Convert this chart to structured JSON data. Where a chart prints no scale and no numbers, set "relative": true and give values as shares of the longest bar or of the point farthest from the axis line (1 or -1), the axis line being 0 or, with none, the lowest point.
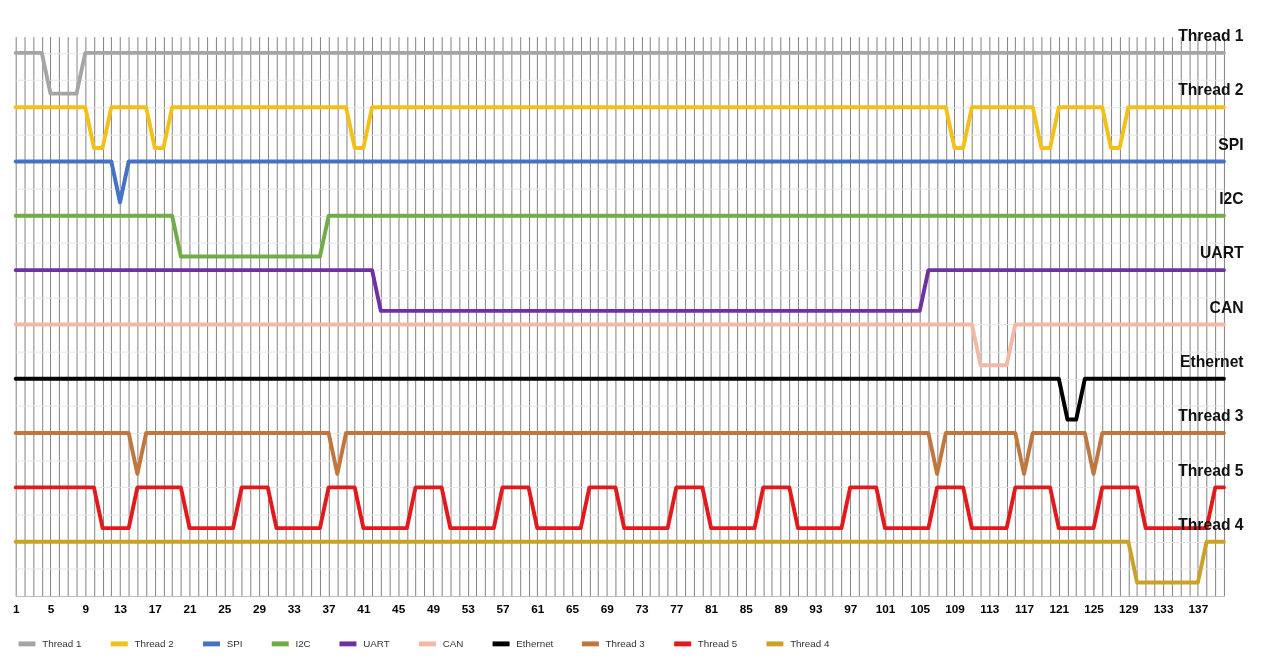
{
  "chart_data": {
    "type": "line",
    "relative": true,
    "grid": true,
    "legend": "bottom",
    "marker": "none",
    "line_style": "solid",
    "categories": [
      "1",
      null,
      null,
      null,
      "5",
      null,
      null,
      null,
      "9",
      null,
      null,
      null,
      "13",
      null,
      null,
      null,
      "17",
      null,
      null,
      null,
      "21",
      null,
      null,
      null,
      "25",
      null,
      null,
      null,
      "29",
      null,
      null,
      null,
      "33",
      null,
      null,
      null,
      "37",
      null,
      null,
      null,
      "41",
      null,
      null,
      null,
      "45",
      null,
      null,
      null,
      "49",
      null,
      null,
      null,
      "53",
      null,
      null,
      null,
      "57",
      null,
      null,
      null,
      "61",
      null,
      null,
      null,
      "65",
      null,
      null,
      null,
      "69",
      null,
      null,
      null,
      "73",
      null,
      null,
      null,
      "77",
      null,
      null,
      null,
      "81",
      null,
      null,
      null,
      "85",
      null,
      null,
      null,
      "89",
      null,
      null,
      null,
      "93",
      null,
      null,
      null,
      "97",
      null,
      null,
      null,
      "101",
      null,
      null,
      null,
      "105",
      null,
      null,
      null,
      "109",
      null,
      null,
      null,
      "113",
      null,
      null,
      null,
      "117",
      null,
      null,
      null,
      "121",
      null,
      null,
      null,
      "125",
      null,
      null,
      null,
      "129",
      null,
      null,
      null,
      "133",
      null,
      null,
      null,
      "137",
      null,
      null,
      null
    ],
    "series": [
      {
        "name": "Thread 1",
        "color": "#a5a5a5",
        "values": [
          1,
          1,
          1,
          1,
          0.925,
          0.925,
          0.925,
          0.925,
          1,
          1,
          1,
          1,
          1,
          1,
          1,
          1,
          1,
          1,
          1,
          1,
          1,
          1,
          1,
          1,
          1,
          1,
          1,
          1,
          1,
          1,
          1,
          1,
          1,
          1,
          1,
          1,
          1,
          1,
          1,
          1,
          1,
          1,
          1,
          1,
          1,
          1,
          1,
          1,
          1,
          1,
          1,
          1,
          1,
          1,
          1,
          1,
          1,
          1,
          1,
          1,
          1,
          1,
          1,
          1,
          1,
          1,
          1,
          1,
          1,
          1,
          1,
          1,
          1,
          1,
          1,
          1,
          1,
          1,
          1,
          1,
          1,
          1,
          1,
          1,
          1,
          1,
          1,
          1,
          1,
          1,
          1,
          1,
          1,
          1,
          1,
          1,
          1,
          1,
          1,
          1,
          1,
          1,
          1,
          1,
          1,
          1,
          1,
          1,
          1,
          1,
          1,
          1,
          1,
          1,
          1,
          1,
          1,
          1,
          1,
          1,
          1,
          1,
          1,
          1,
          1,
          1,
          1,
          1,
          1,
          1,
          1,
          1,
          1,
          1,
          1,
          1,
          1,
          1,
          1,
          1
        ]
      },
      {
        "name": "Thread 2",
        "color": "#f2c018",
        "values": [
          0.9,
          0.9,
          0.9,
          0.9,
          0.9,
          0.9,
          0.9,
          0.9,
          0.9,
          0.825,
          0.825,
          0.9,
          0.9,
          0.9,
          0.9,
          0.9,
          0.825,
          0.825,
          0.9,
          0.9,
          0.9,
          0.9,
          0.9,
          0.9,
          0.9,
          0.9,
          0.9,
          0.9,
          0.9,
          0.9,
          0.9,
          0.9,
          0.9,
          0.9,
          0.9,
          0.9,
          0.9,
          0.9,
          0.9,
          0.825,
          0.825,
          0.9,
          0.9,
          0.9,
          0.9,
          0.9,
          0.9,
          0.9,
          0.9,
          0.9,
          0.9,
          0.9,
          0.9,
          0.9,
          0.9,
          0.9,
          0.9,
          0.9,
          0.9,
          0.9,
          0.9,
          0.9,
          0.9,
          0.9,
          0.9,
          0.9,
          0.9,
          0.9,
          0.9,
          0.9,
          0.9,
          0.9,
          0.9,
          0.9,
          0.9,
          0.9,
          0.9,
          0.9,
          0.9,
          0.9,
          0.9,
          0.9,
          0.9,
          0.9,
          0.9,
          0.9,
          0.9,
          0.9,
          0.9,
          0.9,
          0.9,
          0.9,
          0.9,
          0.9,
          0.9,
          0.9,
          0.9,
          0.9,
          0.9,
          0.9,
          0.9,
          0.9,
          0.9,
          0.9,
          0.9,
          0.9,
          0.9,
          0.9,
          0.825,
          0.825,
          0.9,
          0.9,
          0.9,
          0.9,
          0.9,
          0.9,
          0.9,
          0.9,
          0.825,
          0.825,
          0.9,
          0.9,
          0.9,
          0.9,
          0.9,
          0.9,
          0.825,
          0.825,
          0.9,
          0.9,
          0.9,
          0.9,
          0.9,
          0.9,
          0.9,
          0.9,
          0.9,
          0.9,
          0.9,
          0.9
        ]
      },
      {
        "name": "SPI",
        "color": "#4472c4",
        "values": [
          0.8,
          0.8,
          0.8,
          0.8,
          0.8,
          0.8,
          0.8,
          0.8,
          0.8,
          0.8,
          0.8,
          0.8,
          0.725,
          0.8,
          0.8,
          0.8,
          0.8,
          0.8,
          0.8,
          0.8,
          0.8,
          0.8,
          0.8,
          0.8,
          0.8,
          0.8,
          0.8,
          0.8,
          0.8,
          0.8,
          0.8,
          0.8,
          0.8,
          0.8,
          0.8,
          0.8,
          0.8,
          0.8,
          0.8,
          0.8,
          0.8,
          0.8,
          0.8,
          0.8,
          0.8,
          0.8,
          0.8,
          0.8,
          0.8,
          0.8,
          0.8,
          0.8,
          0.8,
          0.8,
          0.8,
          0.8,
          0.8,
          0.8,
          0.8,
          0.8,
          0.8,
          0.8,
          0.8,
          0.8,
          0.8,
          0.8,
          0.8,
          0.8,
          0.8,
          0.8,
          0.8,
          0.8,
          0.8,
          0.8,
          0.8,
          0.8,
          0.8,
          0.8,
          0.8,
          0.8,
          0.8,
          0.8,
          0.8,
          0.8,
          0.8,
          0.8,
          0.8,
          0.8,
          0.8,
          0.8,
          0.8,
          0.8,
          0.8,
          0.8,
          0.8,
          0.8,
          0.8,
          0.8,
          0.8,
          0.8,
          0.8,
          0.8,
          0.8,
          0.8,
          0.8,
          0.8,
          0.8,
          0.8,
          0.8,
          0.8,
          0.8,
          0.8,
          0.8,
          0.8,
          0.8,
          0.8,
          0.8,
          0.8,
          0.8,
          0.8,
          0.8,
          0.8,
          0.8,
          0.8,
          0.8,
          0.8,
          0.8,
          0.8,
          0.8,
          0.8,
          0.8,
          0.8,
          0.8,
          0.8,
          0.8,
          0.8,
          0.8,
          0.8,
          0.8,
          0.8
        ]
      },
      {
        "name": "I2C",
        "color": "#70ad47",
        "values": [
          0.7,
          0.7,
          0.7,
          0.7,
          0.7,
          0.7,
          0.7,
          0.7,
          0.7,
          0.7,
          0.7,
          0.7,
          0.7,
          0.7,
          0.7,
          0.7,
          0.7,
          0.7,
          0.7,
          0.625,
          0.625,
          0.625,
          0.625,
          0.625,
          0.625,
          0.625,
          0.625,
          0.625,
          0.625,
          0.625,
          0.625,
          0.625,
          0.625,
          0.625,
          0.625,
          0.625,
          0.7,
          0.7,
          0.7,
          0.7,
          0.7,
          0.7,
          0.7,
          0.7,
          0.7,
          0.7,
          0.7,
          0.7,
          0.7,
          0.7,
          0.7,
          0.7,
          0.7,
          0.7,
          0.7,
          0.7,
          0.7,
          0.7,
          0.7,
          0.7,
          0.7,
          0.7,
          0.7,
          0.7,
          0.7,
          0.7,
          0.7,
          0.7,
          0.7,
          0.7,
          0.7,
          0.7,
          0.7,
          0.7,
          0.7,
          0.7,
          0.7,
          0.7,
          0.7,
          0.7,
          0.7,
          0.7,
          0.7,
          0.7,
          0.7,
          0.7,
          0.7,
          0.7,
          0.7,
          0.7,
          0.7,
          0.7,
          0.7,
          0.7,
          0.7,
          0.7,
          0.7,
          0.7,
          0.7,
          0.7,
          0.7,
          0.7,
          0.7,
          0.7,
          0.7,
          0.7,
          0.7,
          0.7,
          0.7,
          0.7,
          0.7,
          0.7,
          0.7,
          0.7,
          0.7,
          0.7,
          0.7,
          0.7,
          0.7,
          0.7,
          0.7,
          0.7,
          0.7,
          0.7,
          0.7,
          0.7,
          0.7,
          0.7,
          0.7,
          0.7,
          0.7,
          0.7,
          0.7,
          0.7,
          0.7,
          0.7,
          0.7,
          0.7,
          0.7,
          0.7
        ]
      },
      {
        "name": "UART",
        "color": "#7030a0",
        "values": [
          0.6,
          0.6,
          0.6,
          0.6,
          0.6,
          0.6,
          0.6,
          0.6,
          0.6,
          0.6,
          0.6,
          0.6,
          0.6,
          0.6,
          0.6,
          0.6,
          0.6,
          0.6,
          0.6,
          0.6,
          0.6,
          0.6,
          0.6,
          0.6,
          0.6,
          0.6,
          0.6,
          0.6,
          0.6,
          0.6,
          0.6,
          0.6,
          0.6,
          0.6,
          0.6,
          0.6,
          0.6,
          0.6,
          0.6,
          0.6,
          0.6,
          0.6,
          0.525,
          0.525,
          0.525,
          0.525,
          0.525,
          0.525,
          0.525,
          0.525,
          0.525,
          0.525,
          0.525,
          0.525,
          0.525,
          0.525,
          0.525,
          0.525,
          0.525,
          0.525,
          0.525,
          0.525,
          0.525,
          0.525,
          0.525,
          0.525,
          0.525,
          0.525,
          0.525,
          0.525,
          0.525,
          0.525,
          0.525,
          0.525,
          0.525,
          0.525,
          0.525,
          0.525,
          0.525,
          0.525,
          0.525,
          0.525,
          0.525,
          0.525,
          0.525,
          0.525,
          0.525,
          0.525,
          0.525,
          0.525,
          0.525,
          0.525,
          0.525,
          0.525,
          0.525,
          0.525,
          0.525,
          0.525,
          0.525,
          0.525,
          0.525,
          0.525,
          0.525,
          0.525,
          0.525,
          0.6,
          0.6,
          0.6,
          0.6,
          0.6,
          0.6,
          0.6,
          0.6,
          0.6,
          0.6,
          0.6,
          0.6,
          0.6,
          0.6,
          0.6,
          0.6,
          0.6,
          0.6,
          0.6,
          0.6,
          0.6,
          0.6,
          0.6,
          0.6,
          0.6,
          0.6,
          0.6,
          0.6,
          0.6,
          0.6,
          0.6,
          0.6,
          0.6,
          0.6,
          0.6
        ]
      },
      {
        "name": "CAN",
        "color": "#f4b9a5",
        "values": [
          0.5,
          0.5,
          0.5,
          0.5,
          0.5,
          0.5,
          0.5,
          0.5,
          0.5,
          0.5,
          0.5,
          0.5,
          0.5,
          0.5,
          0.5,
          0.5,
          0.5,
          0.5,
          0.5,
          0.5,
          0.5,
          0.5,
          0.5,
          0.5,
          0.5,
          0.5,
          0.5,
          0.5,
          0.5,
          0.5,
          0.5,
          0.5,
          0.5,
          0.5,
          0.5,
          0.5,
          0.5,
          0.5,
          0.5,
          0.5,
          0.5,
          0.5,
          0.5,
          0.5,
          0.5,
          0.5,
          0.5,
          0.5,
          0.5,
          0.5,
          0.5,
          0.5,
          0.5,
          0.5,
          0.5,
          0.5,
          0.5,
          0.5,
          0.5,
          0.5,
          0.5,
          0.5,
          0.5,
          0.5,
          0.5,
          0.5,
          0.5,
          0.5,
          0.5,
          0.5,
          0.5,
          0.5,
          0.5,
          0.5,
          0.5,
          0.5,
          0.5,
          0.5,
          0.5,
          0.5,
          0.5,
          0.5,
          0.5,
          0.5,
          0.5,
          0.5,
          0.5,
          0.5,
          0.5,
          0.5,
          0.5,
          0.5,
          0.5,
          0.5,
          0.5,
          0.5,
          0.5,
          0.5,
          0.5,
          0.5,
          0.5,
          0.5,
          0.5,
          0.5,
          0.5,
          0.5,
          0.5,
          0.5,
          0.5,
          0.5,
          0.5,
          0.425,
          0.425,
          0.425,
          0.425,
          0.5,
          0.5,
          0.5,
          0.5,
          0.5,
          0.5,
          0.5,
          0.5,
          0.5,
          0.5,
          0.5,
          0.5,
          0.5,
          0.5,
          0.5,
          0.5,
          0.5,
          0.5,
          0.5,
          0.5,
          0.5,
          0.5,
          0.5,
          0.5,
          0.5
        ]
      },
      {
        "name": "Ethernet",
        "color": "#000000",
        "values": [
          0.4,
          0.4,
          0.4,
          0.4,
          0.4,
          0.4,
          0.4,
          0.4,
          0.4,
          0.4,
          0.4,
          0.4,
          0.4,
          0.4,
          0.4,
          0.4,
          0.4,
          0.4,
          0.4,
          0.4,
          0.4,
          0.4,
          0.4,
          0.4,
          0.4,
          0.4,
          0.4,
          0.4,
          0.4,
          0.4,
          0.4,
          0.4,
          0.4,
          0.4,
          0.4,
          0.4,
          0.4,
          0.4,
          0.4,
          0.4,
          0.4,
          0.4,
          0.4,
          0.4,
          0.4,
          0.4,
          0.4,
          0.4,
          0.4,
          0.4,
          0.4,
          0.4,
          0.4,
          0.4,
          0.4,
          0.4,
          0.4,
          0.4,
          0.4,
          0.4,
          0.4,
          0.4,
          0.4,
          0.4,
          0.4,
          0.4,
          0.4,
          0.4,
          0.4,
          0.4,
          0.4,
          0.4,
          0.4,
          0.4,
          0.4,
          0.4,
          0.4,
          0.4,
          0.4,
          0.4,
          0.4,
          0.4,
          0.4,
          0.4,
          0.4,
          0.4,
          0.4,
          0.4,
          0.4,
          0.4,
          0.4,
          0.4,
          0.4,
          0.4,
          0.4,
          0.4,
          0.4,
          0.4,
          0.4,
          0.4,
          0.4,
          0.4,
          0.4,
          0.4,
          0.4,
          0.4,
          0.4,
          0.4,
          0.4,
          0.4,
          0.4,
          0.4,
          0.4,
          0.4,
          0.4,
          0.4,
          0.4,
          0.4,
          0.4,
          0.4,
          0.4,
          0.325,
          0.325,
          0.4,
          0.4,
          0.4,
          0.4,
          0.4,
          0.4,
          0.4,
          0.4,
          0.4,
          0.4,
          0.4,
          0.4,
          0.4,
          0.4,
          0.4,
          0.4,
          0.4
        ]
      },
      {
        "name": "Thread 3",
        "color": "#c0763c",
        "values": [
          0.3,
          0.3,
          0.3,
          0.3,
          0.3,
          0.3,
          0.3,
          0.3,
          0.3,
          0.3,
          0.3,
          0.3,
          0.3,
          0.3,
          0.225,
          0.3,
          0.3,
          0.3,
          0.3,
          0.3,
          0.3,
          0.3,
          0.3,
          0.3,
          0.3,
          0.3,
          0.3,
          0.3,
          0.3,
          0.3,
          0.3,
          0.3,
          0.3,
          0.3,
          0.3,
          0.3,
          0.3,
          0.225,
          0.3,
          0.3,
          0.3,
          0.3,
          0.3,
          0.3,
          0.3,
          0.3,
          0.3,
          0.3,
          0.3,
          0.3,
          0.3,
          0.3,
          0.3,
          0.3,
          0.3,
          0.3,
          0.3,
          0.3,
          0.3,
          0.3,
          0.3,
          0.3,
          0.3,
          0.3,
          0.3,
          0.3,
          0.3,
          0.3,
          0.3,
          0.3,
          0.3,
          0.3,
          0.3,
          0.3,
          0.3,
          0.3,
          0.3,
          0.3,
          0.3,
          0.3,
          0.3,
          0.3,
          0.3,
          0.3,
          0.3,
          0.3,
          0.3,
          0.3,
          0.3,
          0.3,
          0.3,
          0.3,
          0.3,
          0.3,
          0.3,
          0.3,
          0.3,
          0.3,
          0.3,
          0.3,
          0.3,
          0.3,
          0.3,
          0.3,
          0.3,
          0.3,
          0.225,
          0.3,
          0.3,
          0.3,
          0.3,
          0.3,
          0.3,
          0.3,
          0.3,
          0.3,
          0.225,
          0.3,
          0.3,
          0.3,
          0.3,
          0.3,
          0.3,
          0.3,
          0.225,
          0.3,
          0.3,
          0.3,
          0.3,
          0.3,
          0.3,
          0.3,
          0.3,
          0.3,
          0.3,
          0.3,
          0.3,
          0.3,
          0.3,
          0.3
        ]
      },
      {
        "name": "Thread 5",
        "color": "#e3191c",
        "values": [
          0.2,
          0.2,
          0.2,
          0.2,
          0.2,
          0.2,
          0.2,
          0.2,
          0.2,
          0.2,
          0.125,
          0.125,
          0.125,
          0.125,
          0.2,
          0.2,
          0.2,
          0.2,
          0.2,
          0.2,
          0.125,
          0.125,
          0.125,
          0.125,
          0.125,
          0.125,
          0.2,
          0.2,
          0.2,
          0.2,
          0.125,
          0.125,
          0.125,
          0.125,
          0.125,
          0.125,
          0.2,
          0.2,
          0.2,
          0.2,
          0.125,
          0.125,
          0.125,
          0.125,
          0.125,
          0.125,
          0.2,
          0.2,
          0.2,
          0.2,
          0.125,
          0.125,
          0.125,
          0.125,
          0.125,
          0.125,
          0.2,
          0.2,
          0.2,
          0.2,
          0.125,
          0.125,
          0.125,
          0.125,
          0.125,
          0.125,
          0.2,
          0.2,
          0.2,
          0.2,
          0.125,
          0.125,
          0.125,
          0.125,
          0.125,
          0.125,
          0.2,
          0.2,
          0.2,
          0.2,
          0.125,
          0.125,
          0.125,
          0.125,
          0.125,
          0.125,
          0.2,
          0.2,
          0.2,
          0.2,
          0.125,
          0.125,
          0.125,
          0.125,
          0.125,
          0.125,
          0.2,
          0.2,
          0.2,
          0.2,
          0.125,
          0.125,
          0.125,
          0.125,
          0.125,
          0.125,
          0.2,
          0.2,
          0.2,
          0.2,
          0.125,
          0.125,
          0.125,
          0.125,
          0.125,
          0.2,
          0.2,
          0.2,
          0.2,
          0.2,
          0.125,
          0.125,
          0.125,
          0.125,
          0.125,
          0.2,
          0.2,
          0.2,
          0.2,
          0.2,
          0.125,
          0.125,
          0.125,
          0.125,
          0.125,
          0.125,
          0.125,
          0.125,
          0.2,
          0.2
        ]
      },
      {
        "name": "Thread 4",
        "color": "#c9a227",
        "values": [
          0.1,
          0.1,
          0.1,
          0.1,
          0.1,
          0.1,
          0.1,
          0.1,
          0.1,
          0.1,
          0.1,
          0.1,
          0.1,
          0.1,
          0.1,
          0.1,
          0.1,
          0.1,
          0.1,
          0.1,
          0.1,
          0.1,
          0.1,
          0.1,
          0.1,
          0.1,
          0.1,
          0.1,
          0.1,
          0.1,
          0.1,
          0.1,
          0.1,
          0.1,
          0.1,
          0.1,
          0.1,
          0.1,
          0.1,
          0.1,
          0.1,
          0.1,
          0.1,
          0.1,
          0.1,
          0.1,
          0.1,
          0.1,
          0.1,
          0.1,
          0.1,
          0.1,
          0.1,
          0.1,
          0.1,
          0.1,
          0.1,
          0.1,
          0.1,
          0.1,
          0.1,
          0.1,
          0.1,
          0.1,
          0.1,
          0.1,
          0.1,
          0.1,
          0.1,
          0.1,
          0.1,
          0.1,
          0.1,
          0.1,
          0.1,
          0.1,
          0.1,
          0.1,
          0.1,
          0.1,
          0.1,
          0.1,
          0.1,
          0.1,
          0.1,
          0.1,
          0.1,
          0.1,
          0.1,
          0.1,
          0.1,
          0.1,
          0.1,
          0.1,
          0.1,
          0.1,
          0.1,
          0.1,
          0.1,
          0.1,
          0.1,
          0.1,
          0.1,
          0.1,
          0.1,
          0.1,
          0.1,
          0.1,
          0.1,
          0.1,
          0.1,
          0.1,
          0.1,
          0.1,
          0.1,
          0.1,
          0.1,
          0.1,
          0.1,
          0.1,
          0.1,
          0.1,
          0.1,
          0.1,
          0.1,
          0.1,
          0.1,
          0.1,
          0.1,
          0.025,
          0.025,
          0.025,
          0.025,
          0.025,
          0.025,
          0.025,
          0.025,
          0.1,
          0.1,
          0.1
        ]
      }
    ]
  }
}
